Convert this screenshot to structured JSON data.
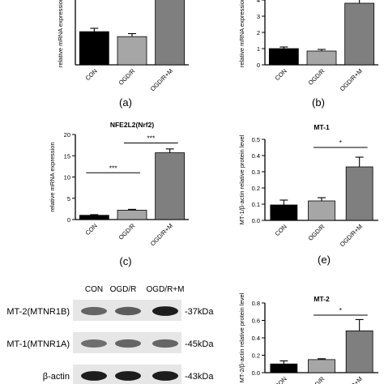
{
  "panels": {
    "a": {
      "label": "(a)"
    },
    "b": {
      "label": "(b)"
    },
    "c": {
      "label": "(c)"
    },
    "e": {
      "label": "(e)"
    }
  },
  "chart_data": [
    {
      "id": "a",
      "type": "bar",
      "title": "",
      "ylabel": "relative mRNA expression",
      "categories": [
        "CON",
        "OGD/R",
        "OGD/R+M"
      ],
      "values": [
        1.0,
        0.85,
        2.0
      ],
      "errors": [
        0.1,
        0.09,
        0.1
      ],
      "bar_colors": [
        "#000000",
        "#a6a6a6",
        "#7f7f7f"
      ],
      "ylim": [
        0,
        2.15
      ],
      "yticks": [],
      "significance": []
    },
    {
      "id": "b",
      "type": "bar",
      "title": "",
      "ylabel": "relative mRNA expression",
      "categories": [
        "CON",
        "OGD/R",
        "OGD/R+M"
      ],
      "values": [
        1.0,
        0.85,
        3.8
      ],
      "errors": [
        0.1,
        0.1,
        0.3
      ],
      "bar_colors": [
        "#000000",
        "#a6a6a6",
        "#7f7f7f"
      ],
      "ylim": [
        0,
        4.4
      ],
      "yticks": [
        0,
        1,
        2,
        3,
        4
      ],
      "significance": []
    },
    {
      "id": "c",
      "type": "bar",
      "title": "NFE2L2(Nrf2)",
      "ylabel": "relative mRNA expression",
      "categories": [
        "CON",
        "OGD/R",
        "OGD/R+M"
      ],
      "values": [
        1.0,
        2.2,
        15.7
      ],
      "errors": [
        0.15,
        0.2,
        0.9
      ],
      "bar_colors": [
        "#000000",
        "#a6a6a6",
        "#7f7f7f"
      ],
      "ylim": [
        0,
        20
      ],
      "yticks": [
        0,
        5,
        10,
        15,
        20
      ],
      "significance": [
        {
          "from": 0,
          "to": 1,
          "label": "***",
          "y": 11.0
        },
        {
          "from": 1,
          "to": 2,
          "label": "***",
          "y": 18.0
        }
      ]
    },
    {
      "id": "e",
      "type": "bar",
      "title": "MT-1",
      "ylabel": "MT-1/β-actin relative protein level",
      "categories": [
        "CON",
        "OGD/R",
        "OGD/R+M"
      ],
      "values": [
        0.095,
        0.12,
        0.33
      ],
      "errors": [
        0.03,
        0.02,
        0.06
      ],
      "bar_colors": [
        "#000000",
        "#a6a6a6",
        "#7f7f7f"
      ],
      "ylim": [
        0,
        0.5
      ],
      "yticks": [
        0.0,
        0.1,
        0.2,
        0.3,
        0.4,
        0.5
      ],
      "significance": [
        {
          "from": 1,
          "to": 2,
          "label": "*",
          "y": 0.45
        }
      ]
    },
    {
      "id": "f",
      "type": "bar",
      "title": "MT-2",
      "ylabel": "MT-2/β-actin relative protein level",
      "categories": [
        "CON",
        "OGD/R",
        "OGD/R+M"
      ],
      "values": [
        0.1,
        0.15,
        0.48
      ],
      "errors": [
        0.035,
        0.01,
        0.13
      ],
      "bar_colors": [
        "#000000",
        "#a6a6a6",
        "#7f7f7f"
      ],
      "ylim": [
        0,
        0.8
      ],
      "yticks": [
        0.0,
        0.2,
        0.4,
        0.6,
        0.8
      ],
      "significance": [
        {
          "from": 1,
          "to": 2,
          "label": "*",
          "y": 0.66
        }
      ]
    }
  ],
  "blot": {
    "lanes": [
      "CON",
      "OGD/R",
      "OGD/R+M"
    ],
    "rows": [
      {
        "protein": "MT-2(MTNR1B)",
        "size": "-37kDa",
        "intensity": [
          0.55,
          0.6,
          0.95
        ]
      },
      {
        "protein": "MT-1(MTNR1A)",
        "size": "-45kDa",
        "intensity": [
          0.5,
          0.55,
          0.55
        ]
      },
      {
        "protein": "β-actin",
        "size": "-43kDa",
        "intensity": [
          0.95,
          0.95,
          0.95
        ]
      }
    ]
  }
}
